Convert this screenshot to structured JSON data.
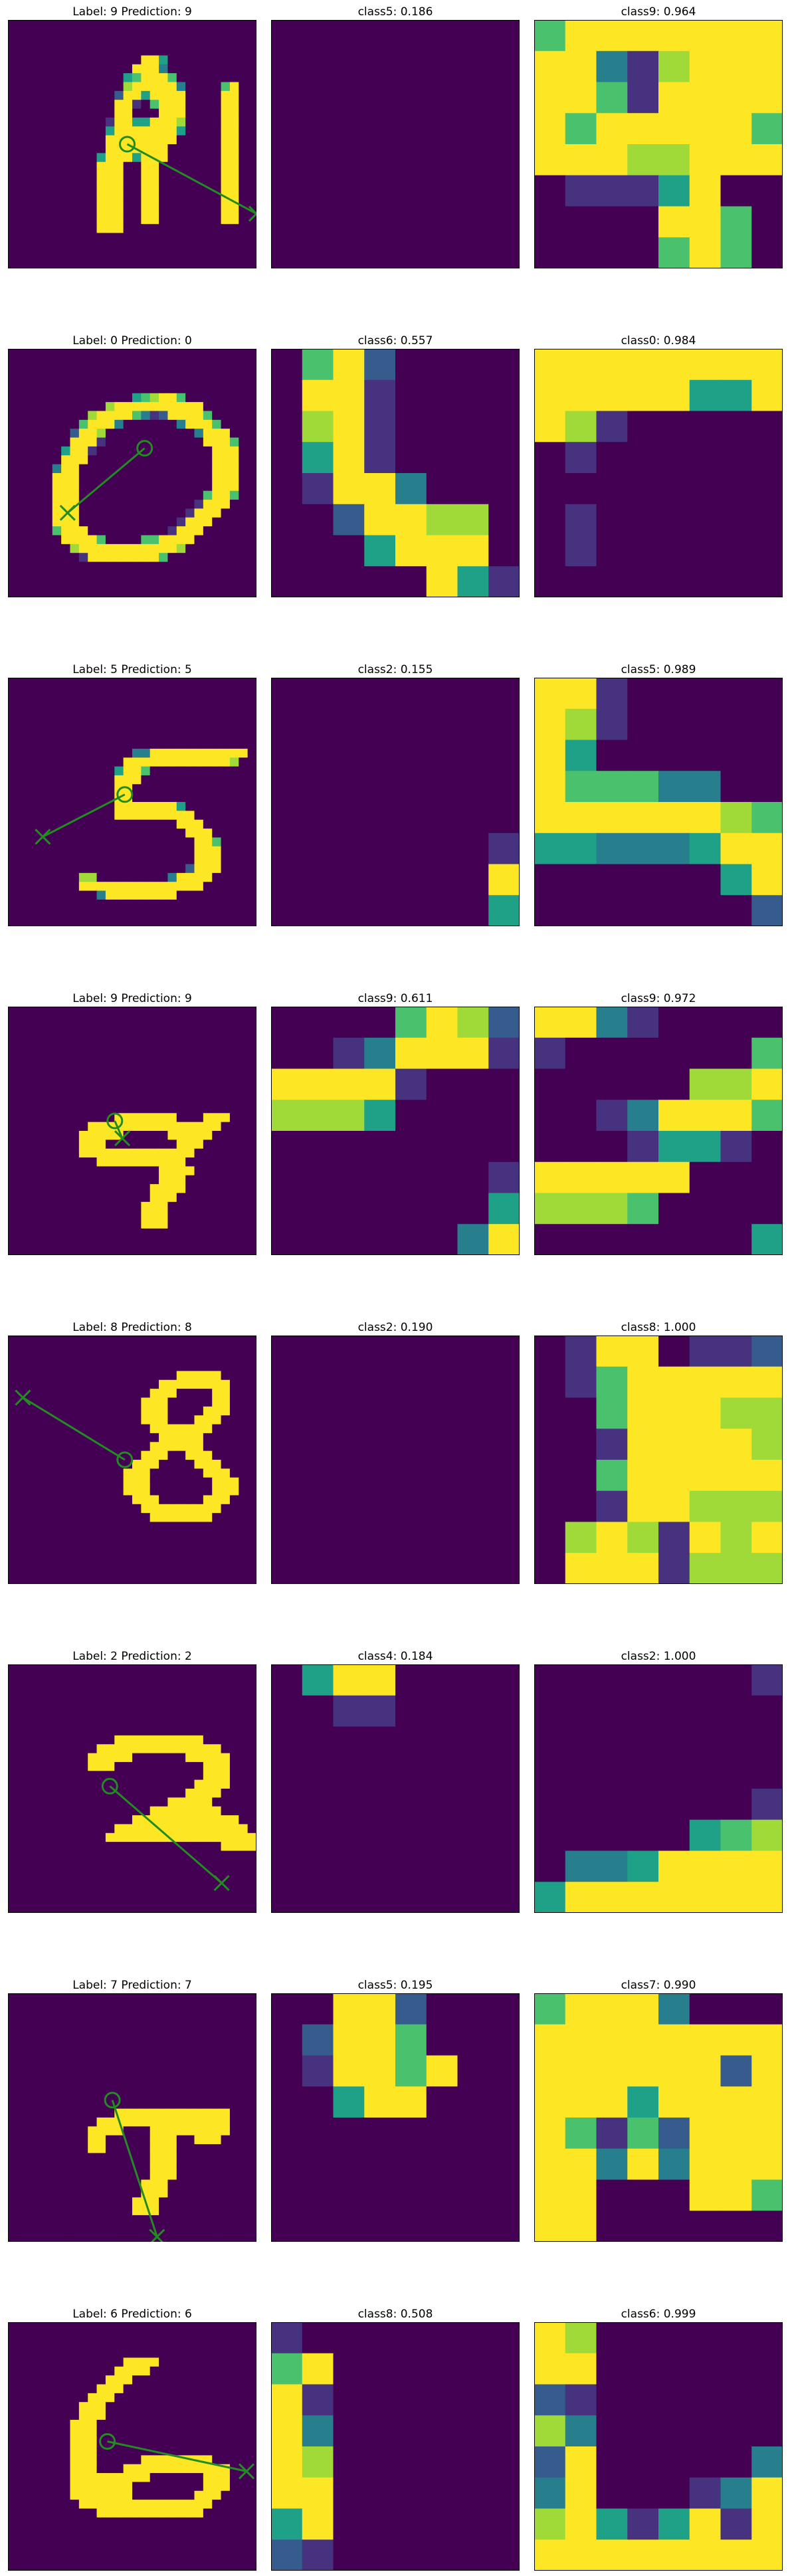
{
  "colors": {
    "v0": "#440154",
    "v1": "#46327e",
    "v2": "#365c8d",
    "v3": "#277f8e",
    "v4": "#1fa187",
    "v5": "#4ac16d",
    "v6": "#a0da39",
    "v7": "#fde725",
    "marker": "#228b22",
    "frame": "#000000"
  },
  "colormap": "viridis",
  "chart_data": [
    {
      "type": "heatmap",
      "title": "Label: 9 Prediction: 9",
      "classes": [
        {
          "title": "class5: 0.186",
          "grid": [
            "00000000",
            "00000000",
            "00000000",
            "00000000",
            "00000000",
            "00000000",
            "00000000",
            "00000000"
          ]
        },
        {
          "title": "class9: 0.964",
          "grid": [
            "57777777",
            "77316777",
            "77517777",
            "75777775",
            "77766777",
            "01114700",
            "00007750",
            "00005750"
          ]
        }
      ],
      "marker": {
        "circle": [
          0.48,
          0.5
        ],
        "cross": [
          1.0,
          0.78
        ]
      }
    },
    {
      "type": "heatmap",
      "title": "Label: 0 Prediction: 0",
      "classes": [
        {
          "title": "class6: 0.557",
          "grid": [
            "05720000",
            "07710000",
            "06710000",
            "04710000",
            "01773000",
            "00277660",
            "00047770",
            "00000741"
          ]
        },
        {
          "title": "class0: 0.984",
          "grid": [
            "77777777",
            "77777447",
            "76100000",
            "01000000",
            "00000000",
            "01000000",
            "01000000",
            "00000000"
          ]
        }
      ],
      "marker": {
        "circle": [
          0.55,
          0.4
        ],
        "cross": [
          0.24,
          0.66
        ]
      }
    },
    {
      "type": "heatmap",
      "title": "Label: 5 Prediction: 5",
      "classes": [
        {
          "title": "class2: 0.155",
          "grid": [
            "00000000",
            "00000000",
            "00000000",
            "00000000",
            "00000000",
            "00000001",
            "00000007",
            "00000004"
          ]
        },
        {
          "title": "class5: 0.989",
          "grid": [
            "77100000",
            "76100000",
            "74000000",
            "75553300",
            "77777765",
            "44333477",
            "00000047",
            "00000002"
          ]
        }
      ],
      "marker": {
        "circle": [
          0.47,
          0.47
        ],
        "cross": [
          0.14,
          0.64
        ]
      }
    },
    {
      "type": "heatmap",
      "title": "Label: 9 Prediction: 9",
      "classes": [
        {
          "title": "class9: 0.611",
          "grid": [
            "00005762",
            "00137771",
            "77771000",
            "66640000",
            "00000000",
            "00000001",
            "00000004",
            "00000037"
          ]
        },
        {
          "title": "class9: 0.972",
          "grid": [
            "77310000",
            "10000005",
            "00000667",
            "00137775",
            "00014410",
            "77777000",
            "66650000",
            "00000004"
          ]
        }
      ],
      "marker": {
        "circle": [
          0.43,
          0.46
        ],
        "cross": [
          0.46,
          0.53
        ]
      }
    },
    {
      "type": "heatmap",
      "title": "Label: 8 Prediction: 8",
      "classes": [
        {
          "title": "class2: 0.190",
          "grid": [
            "00000000",
            "00000000",
            "00000000",
            "00000000",
            "00000000",
            "00000000",
            "00000000",
            "00000000"
          ]
        },
        {
          "title": "class8: 1.000",
          "grid": [
            "01770112",
            "01577777",
            "00577766",
            "00177776",
            "00577777",
            "00177666",
            "06761767",
            "07771666"
          ]
        }
      ],
      "marker": {
        "circle": [
          0.47,
          0.5
        ],
        "cross": [
          0.06,
          0.25
        ]
      }
    },
    {
      "type": "heatmap",
      "title": "Label: 2 Prediction: 2",
      "classes": [
        {
          "title": "class4: 0.184",
          "grid": [
            "04770000",
            "00110000",
            "00000000",
            "00000000",
            "00000000",
            "00000000",
            "00000000",
            "00000000"
          ]
        },
        {
          "title": "class2: 1.000",
          "grid": [
            "00000001",
            "00000000",
            "00000000",
            "00000000",
            "00000001",
            "00000456",
            "03347777",
            "47777777"
          ]
        }
      ],
      "marker": {
        "circle": [
          0.41,
          0.49
        ],
        "cross": [
          0.86,
          0.88
        ]
      }
    },
    {
      "type": "heatmap",
      "title": "Label: 7 Prediction: 7",
      "classes": [
        {
          "title": "class5: 0.195",
          "grid": [
            "00772000",
            "02775000",
            "01775700",
            "00477000",
            "00000000",
            "00000000",
            "00000000",
            "00000000"
          ]
        },
        {
          "title": "class7: 0.990",
          "grid": [
            "57773000",
            "77777777",
            "77777727",
            "77747777",
            "75152777",
            "77373777",
            "77000775",
            "77000000"
          ]
        }
      ],
      "marker": {
        "circle": [
          0.42,
          0.43
        ],
        "cross": [
          0.6,
          0.98
        ]
      }
    },
    {
      "type": "heatmap",
      "title": "Label: 6 Prediction: 6",
      "classes": [
        {
          "title": "class8: 0.508",
          "grid": [
            "10000000",
            "57000000",
            "71000000",
            "73000000",
            "76000000",
            "77000000",
            "47000000",
            "21000000"
          ]
        },
        {
          "title": "class6: 0.999",
          "grid": [
            "76000000",
            "77000000",
            "21000000",
            "63000000",
            "27000003",
            "37000137",
            "67414717",
            "77777777"
          ]
        }
      ],
      "marker": {
        "circle": [
          0.4,
          0.48
        ],
        "cross": [
          0.96,
          0.6
        ]
      }
    }
  ],
  "digit_images": [
    [
      "0000000000000000000000000000",
      "0000000000000000000000000000",
      "0000000000000000000000000000",
      "0000000000000000000000000000",
      "0000000000000007740000000000",
      "0000000000000077730000000000",
      "0000000000000457775000000000",
      "0000000000000677777300005700",
      "0000000000002774777700007700",
      "0000000000007710577700007700",
      "0000000000007700077700007700",
      "0000000000017744777600007700",
      "0000000000047777777400007700",
      "0000000000077777777000007700",
      "0000000000077777770000007700",
      "0000000000477747770000007700",
      "0000000000777007700000007700",
      "0000000000777007700000007700",
      "0000000000777007700000007700",
      "0000000000777007700000007700",
      "0000000000777007700000007700",
      "0000000000777007700000007700",
      "0000000000777007700000007700",
      "0000000000777000000000000000",
      "0000000000000000000000000000",
      "0000000000000000000000000000",
      "0000000000000000000000000000",
      "0000000000000000000000000000"
    ],
    [
      "0000000000000000000000000000",
      "0000000000000000000000000000",
      "0000000000000000000000000000",
      "0000000000000000000000000000",
      "0000000000000000000000000000",
      "0000000000000045677500000000",
      "0000000000067777777777000000",
      "0000000006777753127777500000",
      "0000000057773000000377750000",
      "0000000277600000000003777000",
      "0000000777100000000000777500",
      "0000004771000000000000077700",
      "0000007770000000000000077700",
      "0000037700000000000000077700",
      "0000077700000000000000077700",
      "0000077700000000000000077700",
      "0000077700000000000000577500",
      "0000077700000000000001777000",
      "0000077700000000000017770000",
      "0000077700000000000177700000",
      "0000057770000000001777000000",
      "0000007777500005577770000000",
      "0000000677777777777600000000",
      "0000000017777777750000000000",
      "0000000000000000000000000000",
      "0000000000000000000000000000",
      "0000000000000000000000000000",
      "0000000000000000000000000000"
    ],
    [
      "0000000000000000000000000000",
      "0000000000000000000000000000",
      "0000000000000000000000000000",
      "0000000000000000000000000000",
      "0000000000000000000000000000",
      "0000000000000000000000000000",
      "0000000000000000000000000000",
      "0000000000000000000000000000",
      "0000000000000033777777777770",
      "0000000000000777777777777600",
      "0000000000004775000000000000",
      "0000000000007770000000000000",
      "0000000000007700000000000000",
      "0000000000007700000000000000",
      "0000000000007777777400000000",
      "0000000000007777777770000000",
      "0000000000000000000777000000",
      "0000000000000000000077700000",
      "0000000000000000000007750000",
      "0000000000000000000007770000",
      "0000000000000000000007770000",
      "0000000000000000000027770000",
      "0000000066000000003777700000",
      "0000000077777777777777000000",
      "0000000000377777777000000000",
      "0000000000000000000000000000",
      "0000000000000000000000000000",
      "0000000000000000000000000000"
    ],
    [
      "0000000000000000000000000000",
      "0000000000000000000000000000",
      "0000000000000000000000000000",
      "0000000000000000000000000000",
      "0000000000000000000000000000",
      "0000000000000000000000000000",
      "0000000000000000000000000000",
      "0000000000000000000000000000",
      "0000000000000000000000000000",
      "0000000000000000000000000000",
      "0000000000000000000000000000",
      "0000000000000000000000000000",
      "0000000000007777777000777000",
      "0000000007777777777777770000",
      "0000000077777000007777700000",
      "0000000077700000000777000000",
      "0000000077777777777770000000",
      "0000000000777777777700000000",
      "0000000000000000077770000000",
      "0000000000000000077700000000",
      "0000000000000000777700000000",
      "0000000000000000777000000000",
      "0000000000000007770000000000",
      "0000000000000007770000000000",
      "0000000000000007770000000000",
      "0000000000000000000000000000",
      "0000000000000000000000000000",
      "0000000000000000000000000000"
    ],
    [
      "0000000000000000000000000000",
      "0000000000000000000000000000",
      "0000000000000000000000000000",
      "0000000000000000000000000000",
      "0000000000000000000777770000",
      "0000000000000000077777777000",
      "0000000000000000777000077000",
      "0000000000000007770000077000",
      "0000000000000007770000777000",
      "0000000000000007770007770000",
      "0000000000000000777777700000",
      "0000000000000000077777000000",
      "0000000000000000777777000000",
      "0000000000000007770077700000",
      "0000000000000077700007770000",
      "0000000000000777000000777000",
      "0000000000000777000000077700",
      "0000000000000777000000077700",
      "0000000000000077700000777000",
      "0000000000000007777777770000",
      "0000000000000000777777700000",
      "0000000000000000000000000000",
      "0000000000000000000000000000",
      "0000000000000000000000000000",
      "0000000000000000000000000000",
      "0000000000000000000000000000",
      "0000000000000000000000000000",
      "0000000000000000000000000000"
    ],
    [
      "0000000000000000000000000000",
      "0000000000000000000000000000",
      "0000000000000000000000000000",
      "0000000000000000000000000000",
      "0000000000000000000000000000",
      "0000000000000000000000000000",
      "0000000000000000000000000000",
      "0000000000000000000000000000",
      "0000000000007777777777000000",
      "0000000000777777777777770000",
      "0000000007777700000077777000",
      "0000000007770000000000777000",
      "0000000000000000000000777000",
      "0000000000000000000007777000",
      "0000000000000000000077770000",
      "0000000000000000007777700000",
      "0000000000000000777777770000",
      "0000000000000077777777777700",
      "0000000000007777777777777770",
      "0000000000077777777777777777",
      "0000000000000000000000007777",
      "0000000000000000000000000000",
      "0000000000000000000000000000",
      "0000000000000000000000000000",
      "0000000000000000000000000000",
      "0000000000000000000000000000",
      "0000000000000000000000000000",
      "0000000000000000000000000000"
    ],
    [
      "0000000000000000000000000000",
      "0000000000000000000000000000",
      "0000000000000000000000000000",
      "0000000000000000000000000000",
      "0000000000000000000000000000",
      "0000000000000000000000000000",
      "0000000000000000000000000000",
      "0000000000000000000000000000",
      "0000000000000000000000000000",
      "0000000000000000000000000000",
      "0000000000000000000000000000",
      "0000000000000000000000000000",
      "0000000000000000000000000000",
      "0000000000007777777777777000",
      "0000000000777777777777777000",
      "0000000007777000777777777000",
      "0000000007700000777007770000",
      "0000000007700000777000000000",
      "0000000000000000777000000000",
      "0000000000000000777000000000",
      "0000000000000000777000000000",
      "0000000000000007770000000000",
      "0000000000000007770000000000",
      "0000000000000077700000000000",
      "0000000000000077700000000000",
      "0000000000000000000000000000",
      "0000000000000000000000000000",
      "0000000000000000000000000000"
    ],
    [
      "0000000000000000000000000000",
      "0000000000000000000000000000",
      "0000000000000000000000000000",
      "0000000000000000000000000000",
      "0000000000000777700000000000",
      "0000000000007777000000000000",
      "0000000000077700000000000000",
      "0000000000777000000000000000",
      "0000000007770000000000000000",
      "0000000077700000000000000000",
      "0000000077700000000000000000",
      "0000000777000000000000000000",
      "0000000777000000000000000000",
      "0000000777000000000000000000",
      "0000000777000000000000000000",
      "0000000777000007777777700000",
      "0000000777000777777777777000",
      "0000000777777777000000777000",
      "0000000777777700000000777000",
      "0000000777777700000007770000",
      "0000000077777777777777700000",
      "0000000000777777777777000000",
      "0000000000000000000000000000",
      "0000000000000000000000000000",
      "0000000000000000000000000000",
      "0000000000000000000000000000",
      "0000000000000000000000000000",
      "0000000000000000000000000000"
    ]
  ]
}
